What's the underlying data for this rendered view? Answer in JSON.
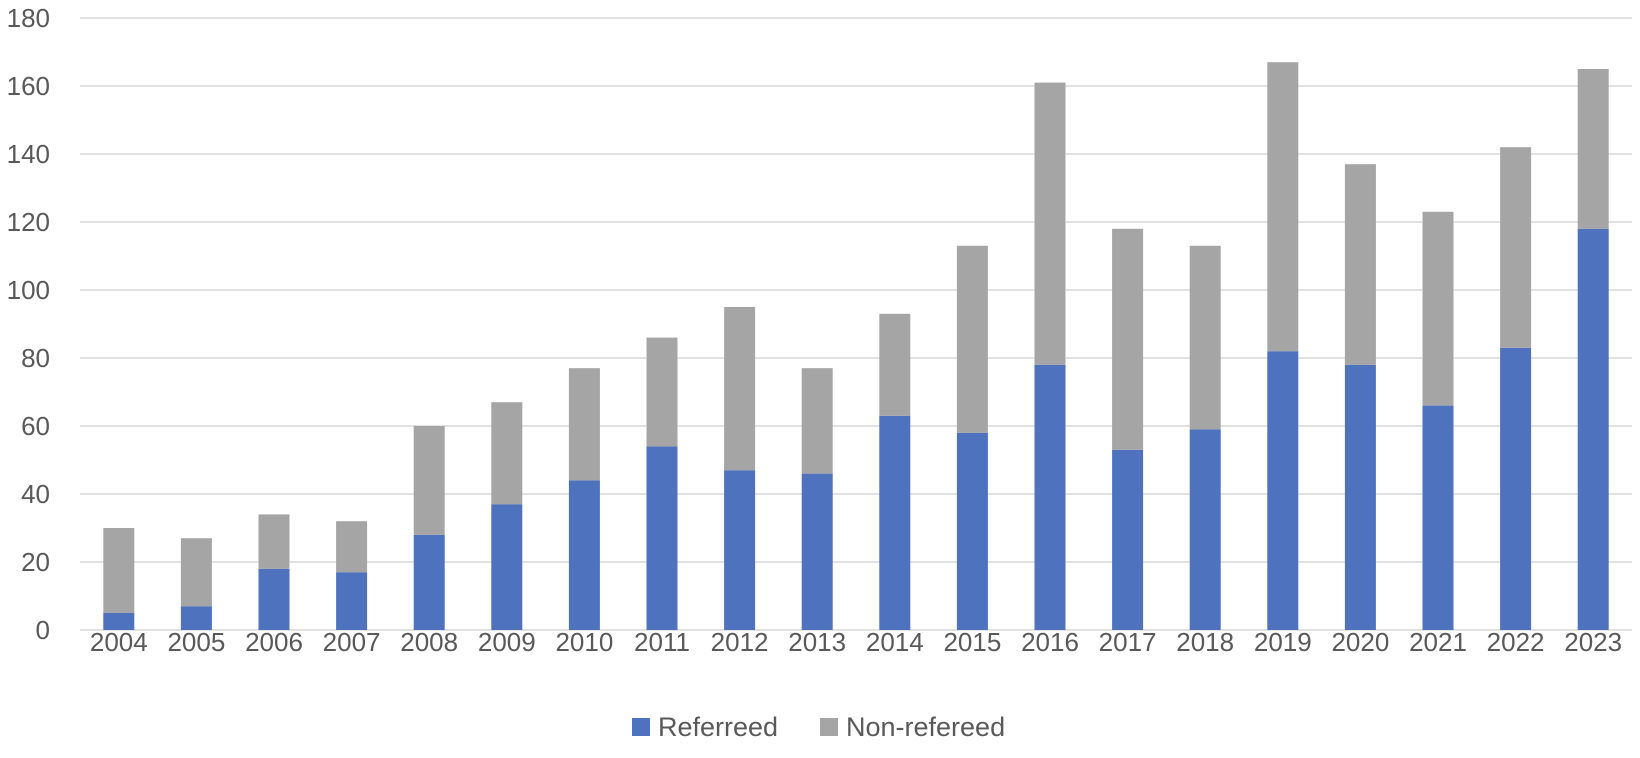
{
  "chart_data": {
    "type": "bar",
    "stacked": true,
    "title": "",
    "xlabel": "",
    "ylabel": "",
    "categories": [
      "2004",
      "2005",
      "2006",
      "2007",
      "2008",
      "2009",
      "2010",
      "2011",
      "2012",
      "2013",
      "2014",
      "2015",
      "2016",
      "2017",
      "2018",
      "2019",
      "2020",
      "2021",
      "2022",
      "2023"
    ],
    "series": [
      {
        "name": "Referreed",
        "color": "#4f72be",
        "values": [
          5,
          7,
          18,
          17,
          28,
          37,
          44,
          54,
          47,
          46,
          63,
          58,
          78,
          53,
          59,
          82,
          78,
          66,
          83,
          118
        ]
      },
      {
        "name": "Non-refereed",
        "color": "#a5a5a5",
        "values": [
          25,
          20,
          16,
          15,
          32,
          30,
          33,
          32,
          48,
          31,
          30,
          55,
          83,
          65,
          54,
          85,
          59,
          57,
          59,
          47
        ]
      }
    ],
    "ylim": [
      0,
      180
    ],
    "yticks": [
      "0",
      "20",
      "40",
      "60",
      "80",
      "100",
      "120",
      "140",
      "160",
      "180"
    ],
    "grid": true,
    "legend_position": "bottom"
  }
}
